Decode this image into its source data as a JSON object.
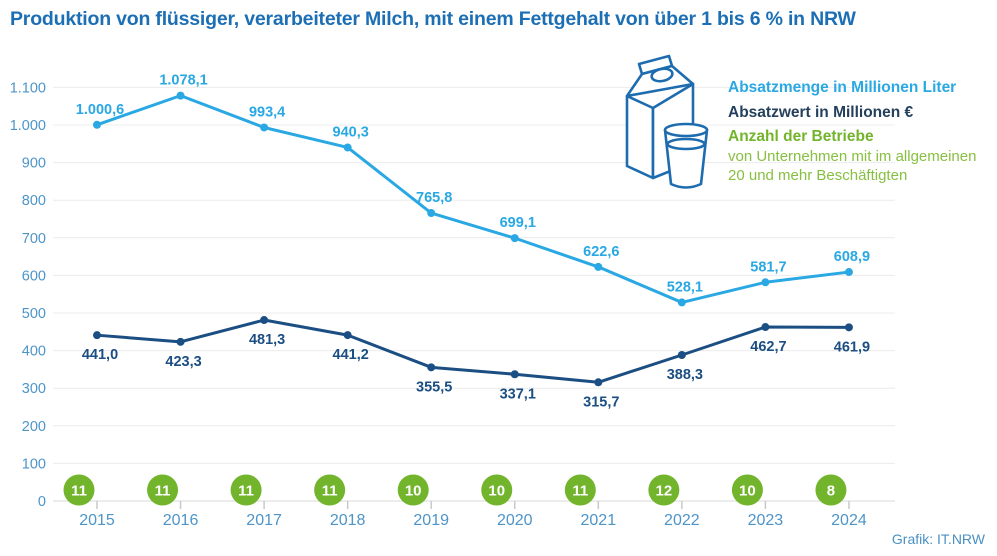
{
  "title": "Produktion von flüssiger, verarbeiteter Milch, mit einem Fettgehalt von über 1 bis 6 % in NRW",
  "credit": "Grafik: IT.NRW",
  "legend": {
    "absatzmenge": "Absatzmenge in Millionen Liter",
    "absatzwert": "Absatzwert in Millionen €",
    "betriebe": "Anzahl der Betriebe",
    "betriebe_sub1": "von Unternehmen mit im allgemeinen",
    "betriebe_sub2": "20 und mehr Beschäftigten"
  },
  "icons": {
    "milk_icon": "milk-carton-and-glass-icon"
  },
  "colors": {
    "title": "#1c6fb4",
    "light_blue": "#29a8e3",
    "dark_blue": "#1b4e82",
    "navy_text": "#24405c",
    "green": "#72b52c",
    "green_light": "#87bf40",
    "axis_text": "#4d94c8",
    "grid": "#ececec",
    "axis_line": "#d9d9d9",
    "tick": "#c9c9c9",
    "credit": "#4a90c2",
    "icon_stroke": "#1e6cb0"
  },
  "chart_data": {
    "type": "line",
    "title": "Produktion von flüssiger, verarbeiteter Milch, mit einem Fettgehalt von über 1 bis 6 % in NRW",
    "categories": [
      "2015",
      "2016",
      "2017",
      "2018",
      "2019",
      "2020",
      "2021",
      "2022",
      "2023",
      "2024"
    ],
    "series": [
      {
        "name": "Absatzmenge in Millionen Liter",
        "color": "#29a8e3",
        "values": [
          1000.6,
          1078.1,
          993.4,
          940.3,
          765.8,
          699.1,
          622.6,
          528.1,
          581.7,
          608.9
        ],
        "labels": [
          "1.000,6",
          "1.078,1",
          "993,4",
          "940,3",
          "765,8",
          "699,1",
          "622,6",
          "528,1",
          "581,7",
          "608,9"
        ],
        "label_position": "above"
      },
      {
        "name": "Absatzwert in Millionen €",
        "color": "#1b4e82",
        "values": [
          441.0,
          423.3,
          481.3,
          441.2,
          355.5,
          337.1,
          315.7,
          388.3,
          462.7,
          461.9
        ],
        "labels": [
          "441,0",
          "423,3",
          "481,3",
          "441,2",
          "355,5",
          "337,1",
          "315,7",
          "388,3",
          "462,7",
          "461,9"
        ],
        "label_position": "below"
      }
    ],
    "betriebe": {
      "name": "Anzahl der Betriebe",
      "color": "#72b52c",
      "values": [
        11,
        11,
        11,
        11,
        10,
        10,
        11,
        12,
        10,
        8
      ]
    },
    "ylim": [
      0,
      1100
    ],
    "ytick_step": 100,
    "ytick_labels": [
      "0",
      "100",
      "200",
      "300",
      "400",
      "500",
      "600",
      "700",
      "800",
      "900",
      "1.000",
      "1.100"
    ],
    "grid": true,
    "legend_position": "top-right"
  }
}
